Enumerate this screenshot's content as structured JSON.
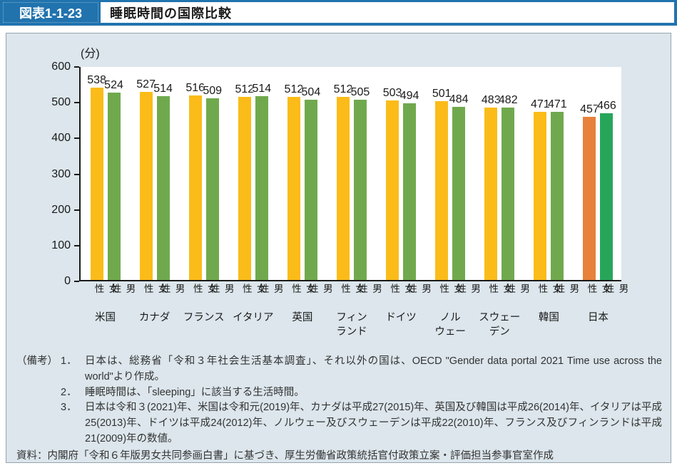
{
  "header": {
    "tag": "図表1-1-23",
    "title": "睡眠時間の国際比較"
  },
  "chart_data": {
    "type": "bar",
    "title": "睡眠時間の国際比較",
    "unit_label": "(分)",
    "ylabel": "分",
    "ylim": [
      0,
      600
    ],
    "yticks": [
      0,
      100,
      200,
      300,
      400,
      500,
      600
    ],
    "grid": false,
    "legend_position": "none",
    "categories": [
      "米国",
      "カナダ",
      "フランス",
      "イタリア",
      "英国",
      "フィンランド",
      "ドイツ",
      "ノルウェー",
      "スウェーデン",
      "韓国",
      "日本"
    ],
    "category_display": [
      "米国",
      "カナダ",
      "フランス",
      "イタリア",
      "英国",
      "フィン\nランド",
      "ドイツ",
      "ノル\nウェー",
      "スウェー\nデン",
      "韓国",
      "日本"
    ],
    "series": [
      {
        "name": "女性",
        "values": [
          538,
          527,
          516,
          512,
          512,
          512,
          503,
          501,
          483,
          471,
          457
        ]
      },
      {
        "name": "男性",
        "values": [
          524,
          514,
          509,
          514,
          504,
          505,
          494,
          484,
          482,
          471,
          466
        ]
      }
    ],
    "colors": {
      "female": "#FBBC19",
      "male": "#70A94D",
      "japan_female": "#E8813C",
      "japan_male": "#27A65A"
    },
    "highlight_category": "日本"
  },
  "notes": {
    "label": "（備考）",
    "items": [
      {
        "num": "1．",
        "text": "日本は、総務省「令和３年社会生活基本調査」、それ以外の国は、OECD \"Gender data portal 2021 Time use across the world\"より作成。"
      },
      {
        "num": "2．",
        "text": "睡眠時間は、「sleeping」に該当する生活時間。"
      },
      {
        "num": "3．",
        "text": "日本は令和３(2021)年、米国は令和元(2019)年、カナダは平成27(2015)年、英国及び韓国は平成26(2014)年、イタリアは平成25(2013)年、ドイツは平成24(2012)年、ノルウェー及びスウェーデンは平成22(2010)年、フランス及びフィンランドは平成21(2009)年の数値。"
      }
    ],
    "source": "資料：内閣府「令和６年版男女共同参画白書」に基づき、厚生労働省政策統括官付政策立案・評価担当参事官室作成"
  },
  "ui_colors": {
    "header_blue": "#2173AE",
    "panel_bg": "#DCE6EC",
    "panel_border": "#97A5AE"
  }
}
